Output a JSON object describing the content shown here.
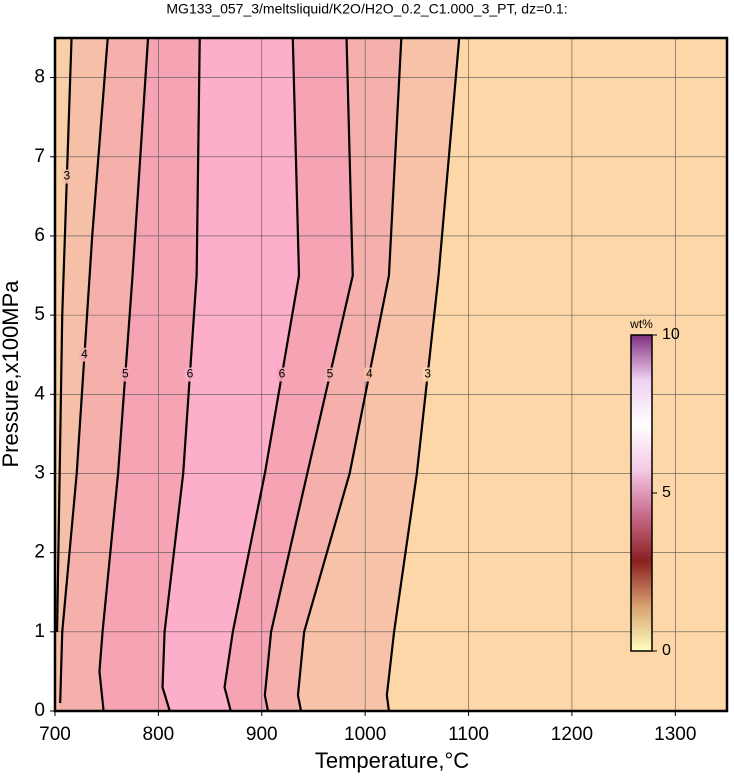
{
  "chart_data": {
    "type": "contour",
    "title": "MG133_057_3/meltsliquid/K2O/H2O_0.2_C1.000_3_PT, dz=0.1:",
    "xlabel": "Temperature,°C",
    "ylabel": "Pressure,x100MPa",
    "xlim": [
      700,
      1350
    ],
    "ylim": [
      0,
      8.5
    ],
    "xticks": [
      700,
      800,
      900,
      1000,
      1100,
      1200,
      1300
    ],
    "yticks": [
      0,
      1,
      2,
      3,
      4,
      5,
      6,
      7,
      8
    ],
    "grid": true,
    "contours": [
      {
        "level": 3,
        "x": [
          702,
          707,
          716
        ],
        "y": [
          1,
          5,
          8.5
        ]
      },
      {
        "level": 4,
        "x": [
          705,
          707,
          721,
          736,
          751
        ],
        "y": [
          0.1,
          1,
          3,
          6,
          8.5
        ]
      },
      {
        "level": 5,
        "x": [
          747,
          743,
          746,
          761,
          775,
          790
        ],
        "y": [
          0,
          0.5,
          1,
          3,
          5.5,
          8.5
        ]
      },
      {
        "level": 6,
        "x": [
          811,
          804,
          806,
          824,
          837,
          840
        ],
        "y": [
          0,
          0.3,
          1,
          3,
          5.5,
          8.5
        ]
      },
      {
        "level": 6,
        "x": [
          870,
          864,
          872,
          903,
          936,
          930
        ],
        "y": [
          0,
          0.3,
          1,
          3,
          5.5,
          8.5
        ]
      },
      {
        "level": 5,
        "x": [
          906,
          903,
          909,
          944,
          988,
          982
        ],
        "y": [
          0,
          0.2,
          1,
          3,
          5.5,
          8.5
        ]
      },
      {
        "level": 4,
        "x": [
          938,
          935,
          941,
          985,
          1023,
          1035
        ],
        "y": [
          0,
          0.2,
          1,
          3,
          5.5,
          8.5
        ]
      },
      {
        "level": 3,
        "x": [
          1023,
          1021,
          1028,
          1050,
          1071,
          1091
        ],
        "y": [
          0,
          0.2,
          1,
          3,
          5.5,
          8.5
        ]
      }
    ],
    "region_colors": [
      "#f8cfa6",
      "#f6c0a8",
      "#f5b0ac",
      "#f6a4b4",
      "#fcaecb",
      "#f6a4b4",
      "#f5b0ac",
      "#f8c2a8",
      "#fdd7a8"
    ],
    "colorbar": {
      "label": "wt%",
      "lim": [
        0,
        10
      ],
      "ticks": [
        0,
        5,
        10
      ],
      "colors": [
        "#ffffc0",
        "#d8a070",
        "#8a2020",
        "#c86a8a",
        "#f4c8e4",
        "#ffffff",
        "#f0d0f0",
        "#803080"
      ]
    }
  }
}
